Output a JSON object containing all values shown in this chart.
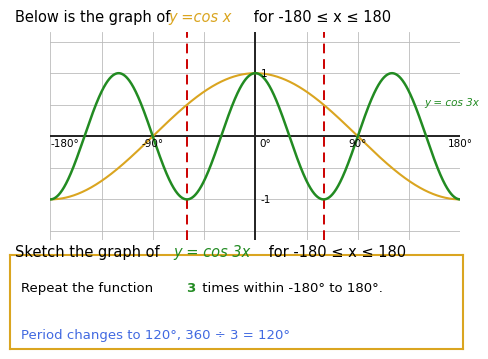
{
  "cos_x_color": "#DAA520",
  "cos_3x_color": "#228B22",
  "red_line_color": "#CC0000",
  "red_dashes": [
    -60,
    60
  ],
  "grid_color": "#BBBBBB",
  "background_color": "#FFFFFF",
  "label_cos3x": "y = cos 3x",
  "label_cos3x_color": "#228B22",
  "x_ticks": [
    -180,
    -90,
    0,
    90,
    180
  ],
  "x_tick_labels": [
    "-180°",
    "-90°",
    "0°",
    "90°",
    "180°"
  ],
  "xlim": [
    -180,
    180
  ],
  "ylim": [
    -1.65,
    1.65
  ],
  "title_prefix": "Below is the graph of ",
  "title_colored": "y =cos x",
  "title_suffix": " for -180 ≤ x ≤ 180",
  "subtitle_prefix": "Sketch the graph of ",
  "subtitle_colored": "y = cos 3x",
  "subtitle_suffix": " for -180 ≤ x ≤ 180",
  "box_text1a": "Repeat the function ",
  "box_text1b": "3",
  "box_text1c": " times within -180° to 180°.",
  "box_text2": "Period changes to 120°, 360 ÷ 3 = 120°",
  "box_border_color": "#DAA520",
  "box_text2_color": "#4169E1",
  "green_number_color": "#228B22"
}
